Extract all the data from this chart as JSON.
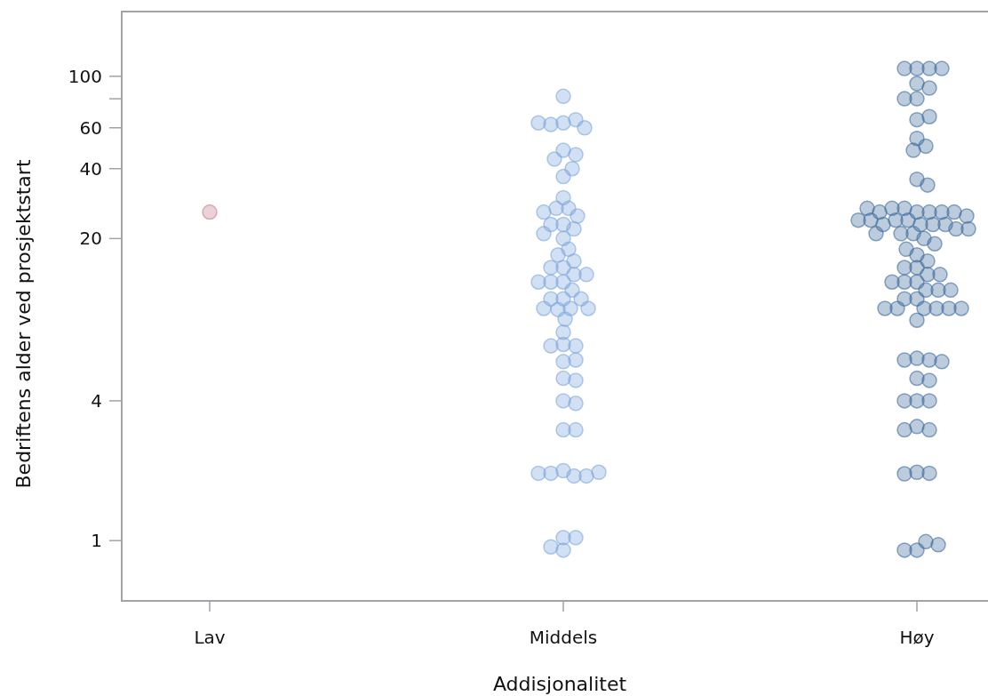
{
  "chart_data": {
    "type": "scatter",
    "xlabel": "Addisjonalitet",
    "ylabel": "Bedriftens alder ved prosjektstart",
    "categories": [
      "Lav",
      "Middels",
      "Høy"
    ],
    "log": "y",
    "ylim": [
      0.55,
      190
    ],
    "yticks": [
      1,
      4,
      20,
      40,
      60,
      {
        "value": 80,
        "label": null
      },
      100
    ],
    "grid": false,
    "marker": "circle",
    "series": [
      {
        "color": "#c77d8e",
        "x": [
          "Lav"
        ],
        "values": [
          26
        ]
      },
      {
        "color": "#7fa6dc",
        "x": [
          "Middels",
          "Middels",
          "Middels",
          "Middels",
          "Middels",
          "Middels",
          "Middels",
          "Middels",
          "Middels",
          "Middels",
          "Middels",
          "Middels",
          "Middels",
          "Middels",
          "Middels",
          "Middels",
          "Middels",
          "Middels",
          "Middels",
          "Middels",
          "Middels",
          "Middels",
          "Middels",
          "Middels",
          "Middels",
          "Middels",
          "Middels",
          "Middels",
          "Middels",
          "Middels",
          "Middels",
          "Middels",
          "Middels",
          "Middels",
          "Middels",
          "Middels",
          "Middels",
          "Middels",
          "Middels",
          "Middels",
          "Middels",
          "Middels",
          "Middels",
          "Middels",
          "Middels",
          "Middels",
          "Middels",
          "Middels",
          "Middels",
          "Middels",
          "Middels",
          "Middels",
          "Middels",
          "Middels",
          "Middels",
          "Middels",
          "Middels",
          "Middels",
          "Middels",
          "Middels",
          "Middels",
          "Middels"
        ],
        "values": [
          82,
          63,
          65,
          62,
          60,
          63,
          48,
          46,
          44,
          37,
          40,
          30,
          27,
          27,
          25,
          26,
          23,
          23,
          22,
          21,
          20,
          18,
          17,
          15,
          16,
          15,
          14,
          14,
          13,
          13,
          13,
          12,
          11,
          11,
          11,
          10,
          10,
          9.9,
          10,
          9,
          7.9,
          7,
          6.9,
          6.9,
          5.9,
          6,
          5,
          4.9,
          4,
          3.9,
          3,
          3,
          2,
          1.9,
          1.95,
          1.9,
          1.95,
          1.97,
          1.03,
          0.91,
          1.03,
          0.94
        ]
      },
      {
        "color": "#3f6c9e",
        "x": [
          "Høy",
          "Høy",
          "Høy",
          "Høy",
          "Høy",
          "Høy",
          "Høy",
          "Høy",
          "Høy",
          "Høy",
          "Høy",
          "Høy",
          "Høy",
          "Høy",
          "Høy",
          "Høy",
          "Høy",
          "Høy",
          "Høy",
          "Høy",
          "Høy",
          "Høy",
          "Høy",
          "Høy",
          "Høy",
          "Høy",
          "Høy",
          "Høy",
          "Høy",
          "Høy",
          "Høy",
          "Høy",
          "Høy",
          "Høy",
          "Høy",
          "Høy",
          "Høy",
          "Høy",
          "Høy",
          "Høy",
          "Høy",
          "Høy",
          "Høy",
          "Høy",
          "Høy",
          "Høy",
          "Høy",
          "Høy",
          "Høy",
          "Høy",
          "Høy",
          "Høy",
          "Høy",
          "Høy",
          "Høy",
          "Høy",
          "Høy",
          "Høy",
          "Høy",
          "Høy",
          "Høy",
          "Høy",
          "Høy",
          "Høy",
          "Høy",
          "Høy",
          "Høy",
          "Høy",
          "Høy",
          "Høy",
          "Høy",
          "Høy",
          "Høy",
          "Høy",
          "Høy",
          "Høy",
          "Høy",
          "Høy",
          "Høy",
          "Høy"
        ],
        "values": [
          108,
          108,
          108,
          108,
          93,
          89,
          80,
          80,
          65,
          67,
          54,
          50,
          48,
          36,
          34,
          26,
          26,
          27,
          26,
          27,
          26,
          26,
          25,
          27,
          24,
          24,
          24,
          24,
          23,
          23,
          23,
          23,
          22,
          22,
          21,
          21,
          21,
          20,
          19,
          17,
          18,
          16,
          15,
          15,
          14,
          14,
          13,
          13,
          13,
          12,
          12,
          12,
          11,
          11,
          10,
          10,
          10,
          10,
          10,
          10,
          8.9,
          6.1,
          6,
          6,
          5.9,
          5,
          4.9,
          4,
          4,
          4,
          3.1,
          3,
          3,
          1.97,
          1.95,
          1.94,
          0.91,
          0.99,
          0.91,
          0.96
        ]
      }
    ]
  }
}
